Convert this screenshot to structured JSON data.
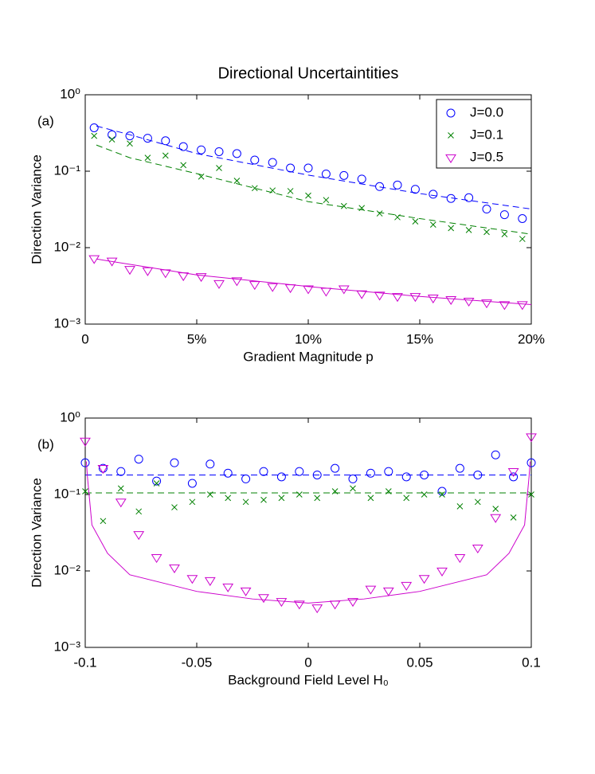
{
  "chart_data": [
    {
      "type": "scatter",
      "title": "Directional Uncertaintities",
      "panel_label": "(a)",
      "xlabel": "Gradient Magnitude p",
      "ylabel": "Direction Variance",
      "xlim": [
        0,
        20
      ],
      "xticks": [
        0,
        {
          "value": 5,
          "label": "5%"
        },
        {
          "value": 10,
          "label": "10%"
        },
        {
          "value": 15,
          "label": "15%"
        },
        {
          "value": 20,
          "label": "20%"
        }
      ],
      "ylim": [
        0.001,
        1
      ],
      "log_y": true,
      "yticks": [
        {
          "value": 0.001,
          "label": "10⁻³"
        },
        {
          "value": 0.01,
          "label": "10⁻²"
        },
        {
          "value": 0.1,
          "label": "10⁻¹"
        },
        {
          "value": 1,
          "label": "10⁰"
        }
      ],
      "legend": "upper right",
      "series": [
        {
          "name": "J=0.0",
          "color": "#0000ff",
          "marker": "circle",
          "x": [
            0.4,
            1.2,
            2.0,
            2.8,
            3.6,
            4.4,
            5.2,
            6.0,
            6.8,
            7.6,
            8.4,
            9.2,
            10.0,
            10.8,
            11.6,
            12.4,
            13.2,
            14.0,
            14.8,
            15.6,
            16.4,
            17.2,
            18.0,
            18.8,
            19.6
          ],
          "values": [
            0.37,
            0.3,
            0.29,
            0.27,
            0.25,
            0.21,
            0.19,
            0.18,
            0.17,
            0.14,
            0.13,
            0.11,
            0.11,
            0.092,
            0.088,
            0.079,
            0.063,
            0.066,
            0.058,
            0.05,
            0.044,
            0.045,
            0.032,
            0.027,
            0.024
          ],
          "fit": {
            "x": [
              0.5,
              2,
              5,
              10,
              15,
              20
            ],
            "values": [
              0.39,
              0.3,
              0.17,
              0.089,
              0.051,
              0.032
            ],
            "dash": true
          }
        },
        {
          "name": "J=0.1",
          "color": "#008000",
          "marker": "x",
          "x": [
            0.4,
            1.2,
            2.0,
            2.8,
            3.6,
            4.4,
            5.2,
            6.0,
            6.8,
            7.6,
            8.4,
            9.2,
            10.0,
            10.8,
            11.6,
            12.4,
            13.2,
            14.0,
            14.8,
            15.6,
            16.4,
            17.2,
            18.0,
            18.8,
            19.6
          ],
          "values": [
            0.29,
            0.26,
            0.23,
            0.15,
            0.16,
            0.12,
            0.085,
            0.11,
            0.075,
            0.06,
            0.056,
            0.055,
            0.048,
            0.042,
            0.035,
            0.033,
            0.028,
            0.025,
            0.022,
            0.02,
            0.018,
            0.017,
            0.016,
            0.015,
            0.013
          ],
          "fit": {
            "x": [
              0.5,
              2,
              5,
              10,
              15,
              20
            ],
            "values": [
              0.22,
              0.15,
              0.093,
              0.04,
              0.024,
              0.015
            ],
            "dash": true
          }
        },
        {
          "name": "J=0.5",
          "color": "#cc00cc",
          "marker": "triangle-down",
          "x": [
            0.4,
            1.2,
            2.0,
            2.8,
            3.6,
            4.4,
            5.2,
            6.0,
            6.8,
            7.6,
            8.4,
            9.2,
            10.0,
            10.8,
            11.6,
            12.4,
            13.2,
            14.0,
            14.8,
            15.6,
            16.4,
            17.2,
            18.0,
            18.8,
            19.6
          ],
          "values": [
            0.0072,
            0.0067,
            0.0052,
            0.005,
            0.0047,
            0.0043,
            0.0042,
            0.0034,
            0.0037,
            0.0033,
            0.0031,
            0.003,
            0.0029,
            0.0027,
            0.0029,
            0.0025,
            0.0024,
            0.0023,
            0.0023,
            0.0022,
            0.0021,
            0.002,
            0.0019,
            0.0018,
            0.0018
          ],
          "fit": {
            "x": [
              0.5,
              5,
              10,
              15,
              20
            ],
            "values": [
              0.0071,
              0.0044,
              0.0031,
              0.0023,
              0.0018
            ],
            "dash": false
          }
        }
      ]
    },
    {
      "type": "scatter",
      "panel_label": "(b)",
      "xlabel": "Background Field Level H₀",
      "ylabel": "Direction Variance",
      "xlim": [
        -0.1,
        0.1
      ],
      "xticks": [
        -0.1,
        -0.05,
        0,
        0.05,
        0.1
      ],
      "ylim": [
        0.001,
        1
      ],
      "log_y": true,
      "yticks": [
        {
          "value": 0.001,
          "label": "10⁻³"
        },
        {
          "value": 0.01,
          "label": "10⁻²"
        },
        {
          "value": 0.1,
          "label": "10⁻¹"
        },
        {
          "value": 1,
          "label": "10⁰"
        }
      ],
      "series": [
        {
          "color": "#0000ff",
          "marker": "circle",
          "x": [
            -0.1,
            -0.092,
            -0.084,
            -0.076,
            -0.068,
            -0.06,
            -0.052,
            -0.044,
            -0.036,
            -0.028,
            -0.02,
            -0.012,
            -0.004,
            0.004,
            0.012,
            0.02,
            0.028,
            0.036,
            0.044,
            0.052,
            0.06,
            0.068,
            0.076,
            0.084,
            0.092,
            0.1
          ],
          "values": [
            0.26,
            0.22,
            0.2,
            0.29,
            0.15,
            0.26,
            0.14,
            0.25,
            0.19,
            0.16,
            0.2,
            0.17,
            0.2,
            0.18,
            0.22,
            0.16,
            0.19,
            0.2,
            0.17,
            0.18,
            0.11,
            0.22,
            0.18,
            0.33,
            0.17,
            0.26
          ],
          "fit": {
            "x": [
              -0.1,
              0.1
            ],
            "values": [
              0.18,
              0.18
            ],
            "dash": true
          }
        },
        {
          "color": "#008000",
          "marker": "x",
          "x": [
            -0.1,
            -0.092,
            -0.084,
            -0.076,
            -0.068,
            -0.06,
            -0.052,
            -0.044,
            -0.036,
            -0.028,
            -0.02,
            -0.012,
            -0.004,
            0.004,
            0.012,
            0.02,
            0.028,
            0.036,
            0.044,
            0.052,
            0.06,
            0.068,
            0.076,
            0.084,
            0.092,
            0.1
          ],
          "values": [
            0.11,
            0.045,
            0.12,
            0.06,
            0.14,
            0.068,
            0.08,
            0.1,
            0.09,
            0.08,
            0.085,
            0.09,
            0.1,
            0.09,
            0.11,
            0.12,
            0.09,
            0.11,
            0.09,
            0.1,
            0.1,
            0.07,
            0.08,
            0.065,
            0.05,
            0.1
          ],
          "fit": {
            "x": [
              -0.1,
              0.1
            ],
            "values": [
              0.105,
              0.105
            ],
            "dash": true
          }
        },
        {
          "color": "#cc00cc",
          "marker": "triangle-down",
          "x": [
            -0.1,
            -0.092,
            -0.084,
            -0.076,
            -0.068,
            -0.06,
            -0.052,
            -0.044,
            -0.036,
            -0.028,
            -0.02,
            -0.012,
            -0.004,
            0.004,
            0.012,
            0.02,
            0.028,
            0.036,
            0.044,
            0.052,
            0.06,
            0.068,
            0.076,
            0.084,
            0.092,
            0.1
          ],
          "values": [
            0.5,
            0.22,
            0.08,
            0.03,
            0.015,
            0.011,
            0.008,
            0.0075,
            0.0062,
            0.0055,
            0.0045,
            0.004,
            0.0037,
            0.0033,
            0.0037,
            0.004,
            0.0058,
            0.0055,
            0.0065,
            0.008,
            0.01,
            0.015,
            0.02,
            0.05,
            0.2,
            0.57
          ],
          "fit": {
            "x": [
              -0.0995,
              -0.099,
              -0.097,
              -0.09,
              -0.08,
              -0.05,
              -0.025,
              0,
              0.025,
              0.05,
              0.08,
              0.09,
              0.097,
              0.099,
              0.0995
            ],
            "values": [
              0.27,
              0.17,
              0.04,
              0.017,
              0.0089,
              0.0054,
              0.0043,
              0.0038,
              0.0043,
              0.0054,
              0.0089,
              0.017,
              0.04,
              0.17,
              0.27
            ],
            "dash": false
          }
        }
      ]
    }
  ]
}
